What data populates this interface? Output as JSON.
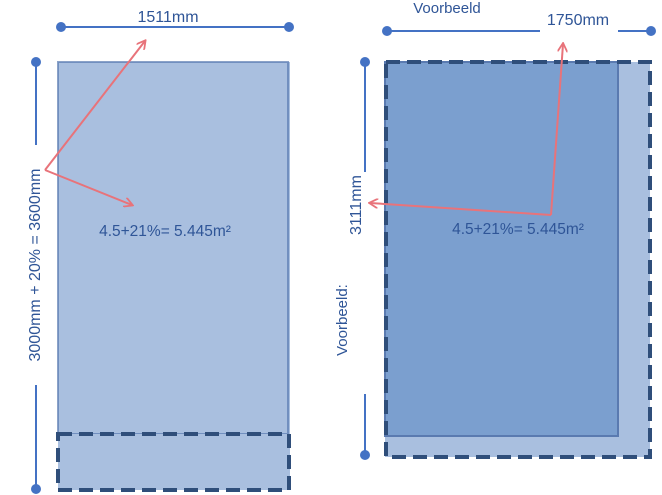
{
  "left": {
    "width_label": "1511mm",
    "height_label": "3000mm + 20% = 3600mm",
    "area_label": "4.5+21%= 5.445m²"
  },
  "right": {
    "caption_top": "Voorbeeld",
    "width_label": "1750mm",
    "height_label": "3111mm",
    "caption_side": "Voorbeeld:",
    "area_label": "4.5+21%= 5.445m²"
  },
  "colors": {
    "line": "#4472c4",
    "panel_light": "#a9bfdf",
    "panel_dark": "#7b9fcf",
    "dashed": "#2f4e7a",
    "arrow": "#e8737a",
    "text": "#2f5597"
  }
}
